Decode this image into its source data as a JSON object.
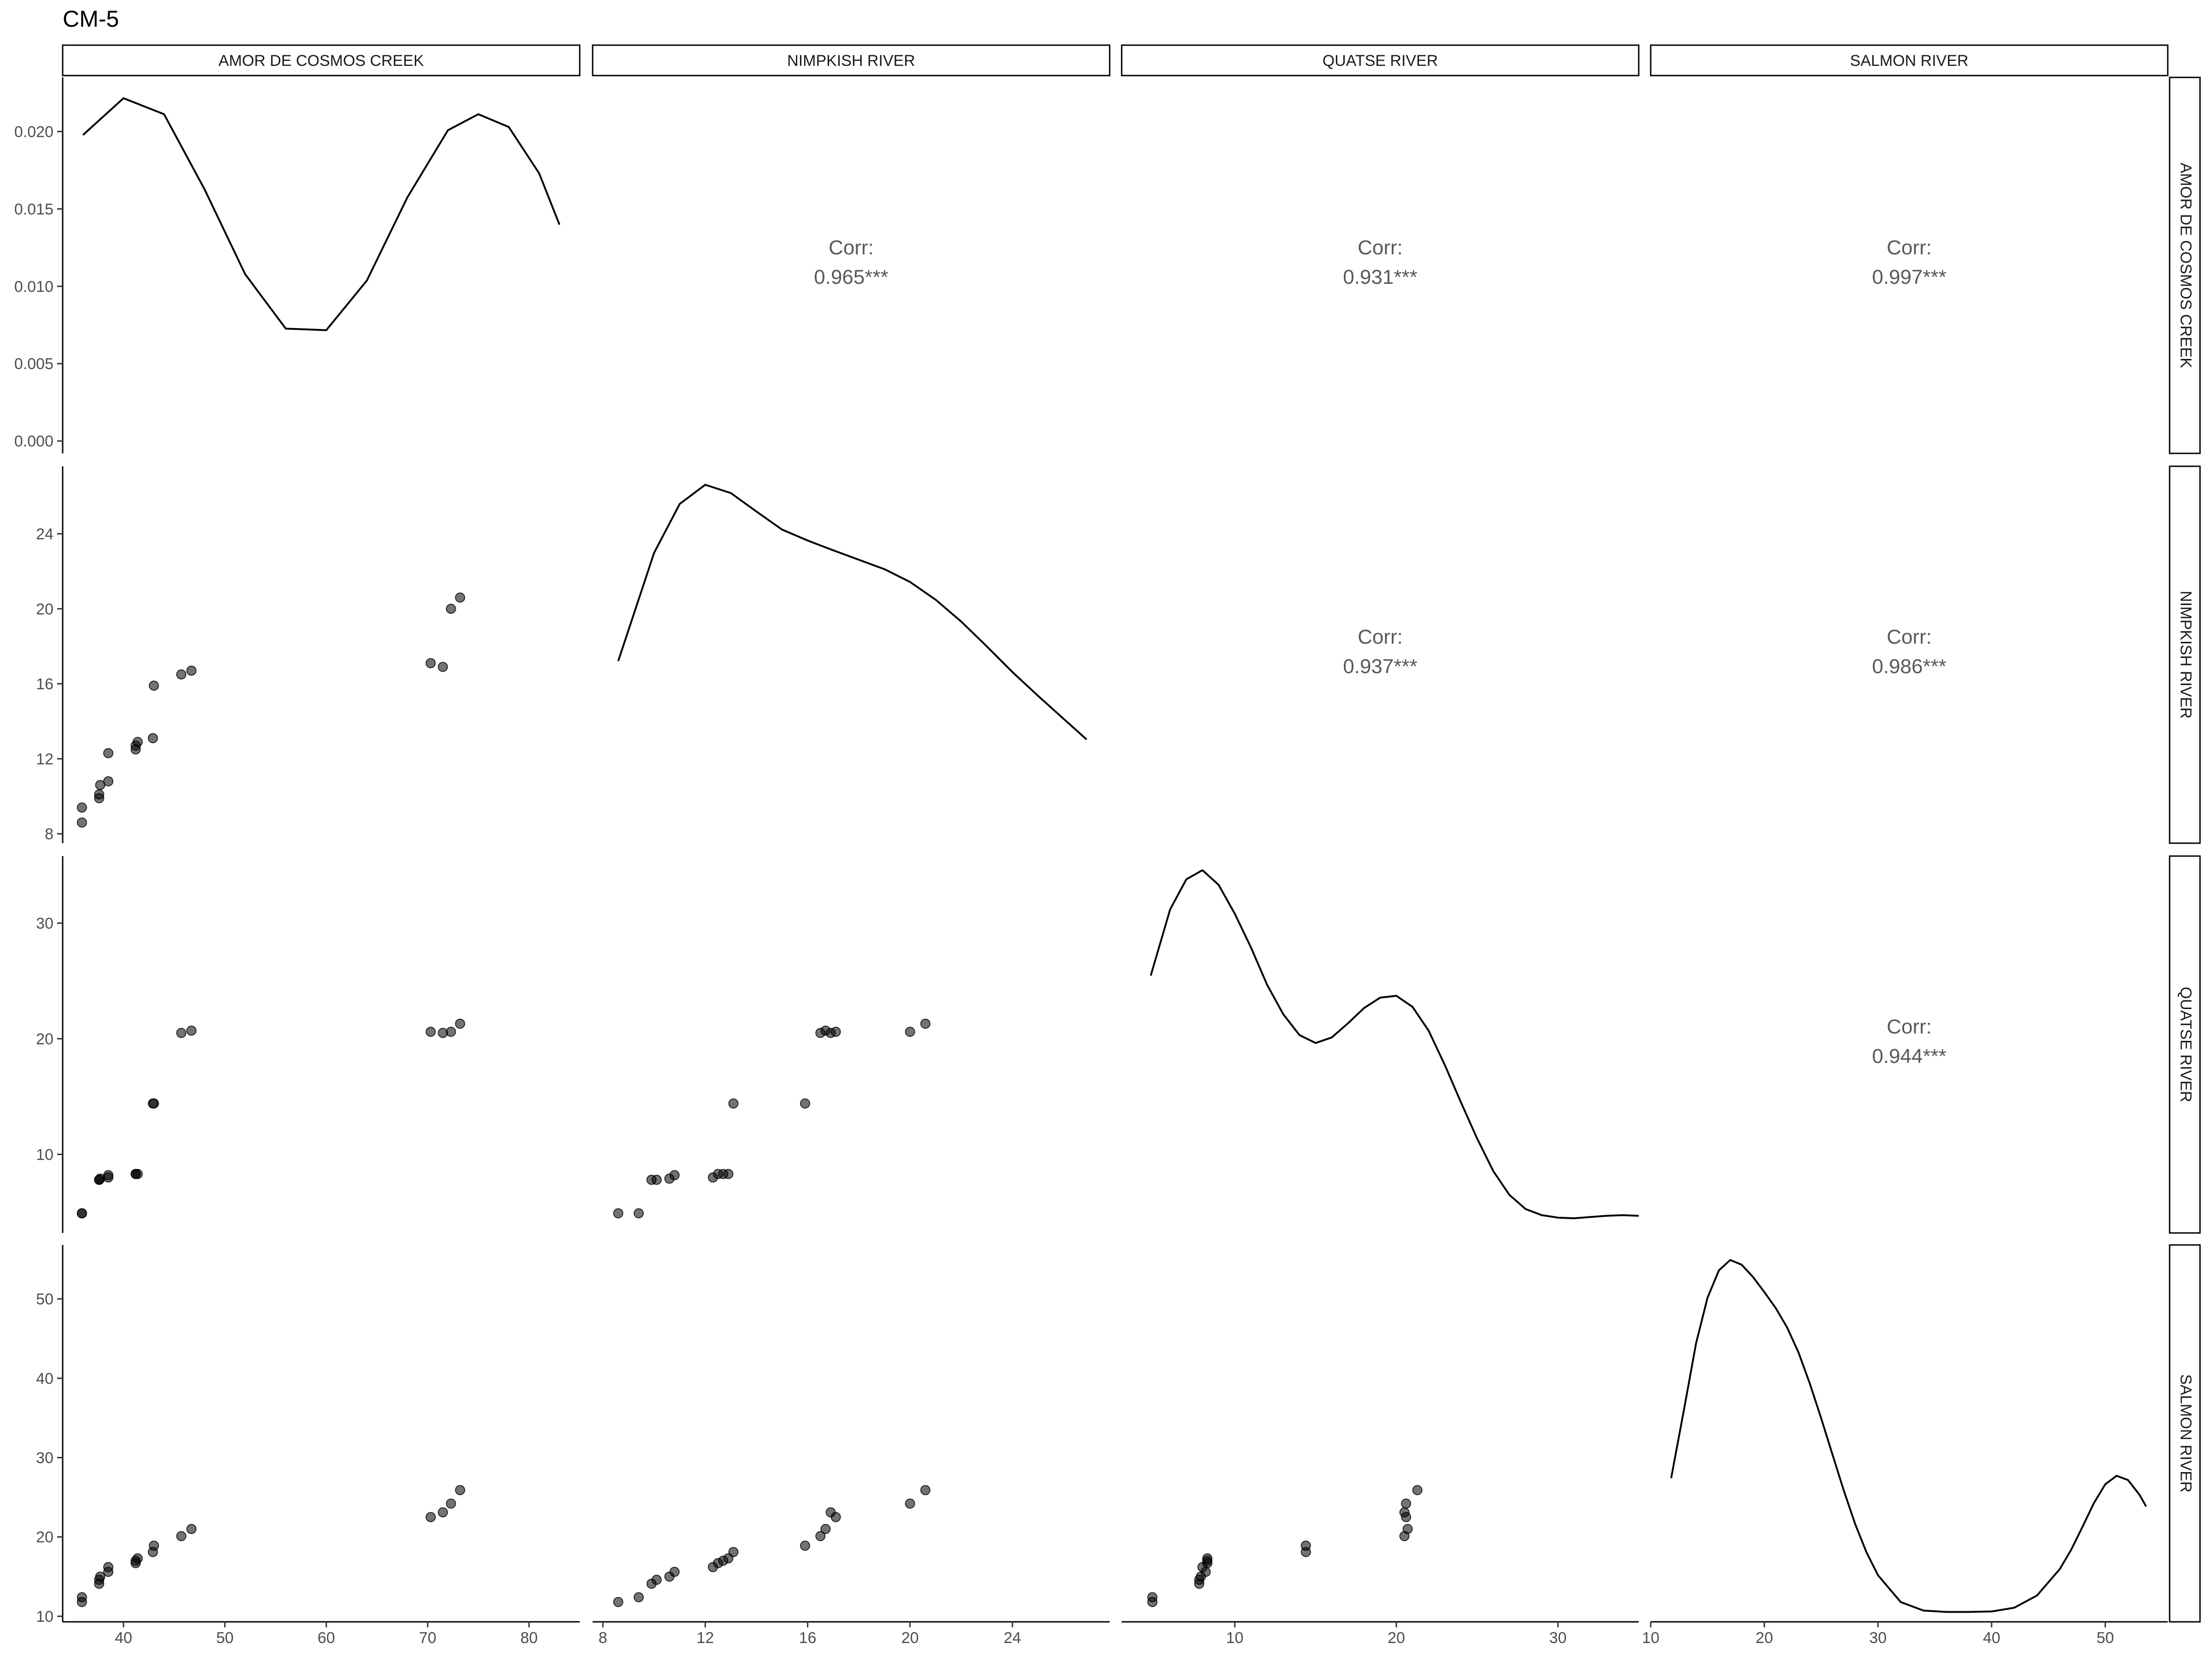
{
  "chart_data": {
    "type": "scatter",
    "title": "CM-5",
    "variables": [
      "AMOR DE COSMOS CREEK",
      "NIMPKISH RIVER",
      "QUATSE RIVER",
      "SALMON RIVER"
    ],
    "corr_label": "Corr:",
    "correlations": [
      {
        "row": 0,
        "col": 1,
        "value": "0.965***"
      },
      {
        "row": 0,
        "col": 2,
        "value": "0.931***"
      },
      {
        "row": 0,
        "col": 3,
        "value": "0.997***"
      },
      {
        "row": 1,
        "col": 2,
        "value": "0.937***"
      },
      {
        "row": 1,
        "col": 3,
        "value": "0.986***"
      },
      {
        "row": 2,
        "col": 3,
        "value": "0.944***"
      }
    ],
    "x_axes": [
      {
        "range": [
          34,
          85
        ],
        "ticks": [
          40,
          50,
          60,
          70,
          80
        ]
      },
      {
        "range": [
          7.6,
          27.8
        ],
        "ticks": [
          8,
          12,
          16,
          20,
          24
        ]
      },
      {
        "range": [
          3.0,
          35.0
        ],
        "ticks": [
          10,
          20,
          30
        ]
      },
      {
        "range": [
          10.0,
          55.5
        ],
        "ticks": [
          10,
          20,
          30,
          40,
          50
        ]
      }
    ],
    "y_axes": [
      {
        "range": [
          -0.0008,
          0.0235
        ],
        "ticks": [
          0.0,
          0.005,
          0.01,
          0.015,
          0.02
        ],
        "tick_labels": [
          "0.000",
          "0.005",
          "0.010",
          "0.015",
          "0.020"
        ]
      },
      {
        "range": [
          7.5,
          27.6
        ],
        "ticks": [
          8,
          12,
          16,
          20,
          24
        ]
      },
      {
        "range": [
          3.2,
          35.8
        ],
        "ticks": [
          10,
          20,
          30
        ]
      },
      {
        "range": [
          9.3,
          56.8
        ],
        "ticks": [
          10,
          20,
          30,
          40,
          50
        ]
      }
    ],
    "densities": [
      {
        "variable": "AMOR DE COSMOS CREEK",
        "x": [
          36.0,
          40.0,
          44.0,
          48.0,
          52.0,
          56.0,
          60.0,
          64.0,
          68.0,
          72.0,
          75.0,
          78.0,
          81.0,
          83.0
        ],
        "y": [
          0.0199,
          0.0222,
          0.0212,
          0.0165,
          0.0112,
          0.0078,
          0.0077,
          0.0108,
          0.016,
          0.0202,
          0.0212,
          0.0204,
          0.0175,
          0.0143
        ]
      },
      {
        "variable": "NIMPKISH RIVER",
        "x": [
          8.6,
          10.0,
          11.0,
          12.0,
          13.0,
          14.0,
          15.0,
          16.0,
          17.0,
          18.0,
          19.0,
          20.0,
          21.0,
          22.0,
          23.0,
          24.0,
          25.0,
          26.0,
          26.9
        ],
        "y": [
          0.0483,
          0.077,
          0.09,
          0.0951,
          0.0929,
          0.088,
          0.0832,
          0.0803,
          0.0777,
          0.0752,
          0.0727,
          0.0693,
          0.0646,
          0.0588,
          0.0522,
          0.0454,
          0.0391,
          0.033,
          0.0275
        ]
      },
      {
        "variable": "QUATSE RIVER",
        "x": [
          4.8,
          6.0,
          7.0,
          8.0,
          9.0,
          10.0,
          11.0,
          12.0,
          13.0,
          14.0,
          15.0,
          16.0,
          17.0,
          18.0,
          19.0,
          20.0,
          21.0,
          22.0,
          23.0,
          24.0,
          25.0,
          26.0,
          27.0,
          28.0,
          29.0,
          30.0,
          31.0,
          32.0,
          33.0,
          34.0,
          35.0
        ],
        "y": [
          0.042,
          0.0528,
          0.0577,
          0.0592,
          0.0568,
          0.0521,
          0.0466,
          0.0405,
          0.0357,
          0.0323,
          0.031,
          0.0319,
          0.0342,
          0.0367,
          0.0384,
          0.0387,
          0.0369,
          0.033,
          0.0274,
          0.0213,
          0.0154,
          0.0101,
          0.0062,
          0.0039,
          0.0029,
          0.0025,
          0.0024,
          0.0026,
          0.0028,
          0.0029,
          0.0028
        ]
      },
      {
        "variable": "SALMON RIVER",
        "x": [
          11.8,
          13.0,
          14.0,
          15.0,
          16.0,
          17.0,
          18.0,
          19.0,
          20.0,
          21.0,
          22.0,
          23.0,
          24.0,
          25.0,
          26.0,
          27.0,
          28.0,
          29.0,
          30.0,
          32.0,
          34.0,
          36.0,
          38.0,
          40.0,
          42.0,
          44.0,
          46.0,
          47.0,
          48.0,
          49.0,
          50.0,
          51.0,
          52.0,
          53.0,
          53.6
        ],
        "y": [
          0.0305,
          0.046,
          0.0592,
          0.0688,
          0.0746,
          0.0768,
          0.0758,
          0.0732,
          0.07,
          0.0666,
          0.0625,
          0.0572,
          0.0506,
          0.0432,
          0.0355,
          0.0278,
          0.0207,
          0.0147,
          0.0099,
          0.0042,
          0.0024,
          0.0021,
          0.0021,
          0.0022,
          0.003,
          0.0056,
          0.0112,
          0.0153,
          0.0202,
          0.0252,
          0.0292,
          0.031,
          0.0301,
          0.027,
          0.0245
        ]
      }
    ],
    "density_ymax": [
      0.0235,
      0.1,
      0.0615,
      0.08
    ],
    "observations": [
      [
        35.9,
        8.6,
        4.9,
        11.8
      ],
      [
        35.9,
        9.4,
        4.9,
        12.4
      ],
      [
        37.6,
        9.9,
        7.8,
        14.1
      ],
      [
        37.6,
        10.1,
        7.8,
        14.6
      ],
      [
        37.7,
        10.6,
        7.9,
        15.0
      ],
      [
        38.5,
        10.8,
        8.2,
        15.6
      ],
      [
        38.5,
        12.3,
        8.0,
        16.2
      ],
      [
        41.2,
        12.5,
        8.3,
        16.7
      ],
      [
        41.2,
        12.7,
        8.3,
        17.0
      ],
      [
        41.4,
        12.9,
        8.3,
        17.3
      ],
      [
        42.9,
        13.1,
        14.4,
        18.1
      ],
      [
        43.0,
        15.9,
        14.4,
        18.9
      ],
      [
        45.7,
        16.5,
        20.5,
        20.1
      ],
      [
        46.7,
        16.7,
        20.7,
        21.0
      ],
      [
        71.5,
        16.9,
        20.5,
        23.1
      ],
      [
        70.3,
        17.1,
        20.6,
        22.5
      ],
      [
        72.3,
        20.0,
        20.6,
        24.2
      ],
      [
        73.2,
        20.6,
        21.3,
        25.9
      ]
    ]
  }
}
